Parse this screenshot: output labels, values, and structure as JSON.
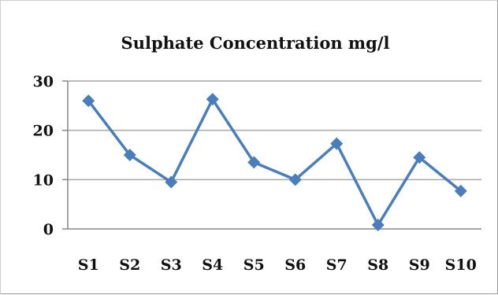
{
  "chart_data": {
    "type": "line",
    "title": "Sulphate Concentration mg/l",
    "xlabel": "",
    "ylabel": "",
    "categories": [
      "S1",
      "S2",
      "S3",
      "S4",
      "S5",
      "S6",
      "S7",
      "S8",
      "S9",
      "S10"
    ],
    "series": [
      {
        "values": [
          26,
          15,
          9.5,
          26.3,
          13.5,
          10,
          17.3,
          0.8,
          14.5,
          7.7
        ]
      }
    ],
    "ylim": [
      0,
      30
    ],
    "yticks": [
      0,
      10,
      20,
      30
    ],
    "grid": true,
    "legend": "none",
    "colors": {
      "series": "#4a7ebb",
      "grid": "#a6a6a6",
      "axis": "#868686"
    }
  }
}
